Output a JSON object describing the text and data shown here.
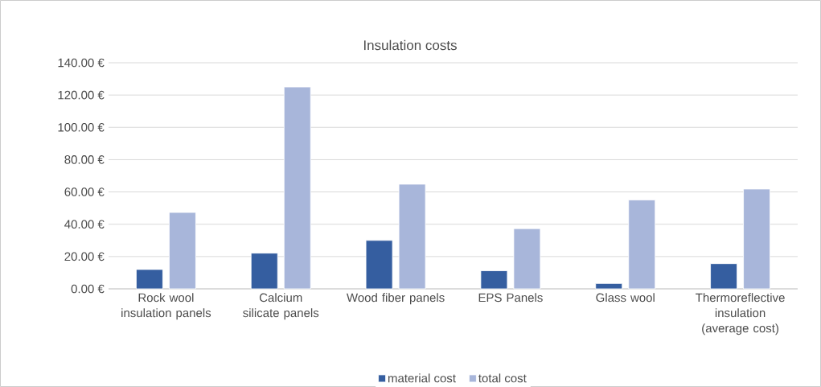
{
  "chart_data": {
    "type": "bar",
    "title": "Insulation costs",
    "categories": [
      "Rock wool insulation panels",
      "Calcium silicate panels",
      "Wood fiber panels",
      "EPS Panels",
      "Glass wool",
      "Thermoreflective insulation (average cost)"
    ],
    "series": [
      {
        "name": "material cost",
        "color": "#355ea0",
        "values": [
          12,
          22.1,
          30,
          11.2,
          3.3,
          15.6
        ]
      },
      {
        "name": "total cost",
        "color": "#a8b6da",
        "values": [
          47.3,
          125,
          64.8,
          37.3,
          55,
          61.8
        ]
      }
    ],
    "ylim": [
      0,
      140
    ],
    "yticks": [
      {
        "value": 0,
        "label": "0.00 €"
      },
      {
        "value": 20,
        "label": "20.00 €"
      },
      {
        "value": 40,
        "label": "40.00 €"
      },
      {
        "value": 60,
        "label": "60.00 €"
      },
      {
        "value": 80,
        "label": "80.00 €"
      },
      {
        "value": 100,
        "label": "100.00 €"
      },
      {
        "value": 120,
        "label": "120.00 €"
      },
      {
        "value": 140,
        "label": "140.00 €"
      }
    ],
    "grid": "y",
    "legend": "bottom"
  }
}
